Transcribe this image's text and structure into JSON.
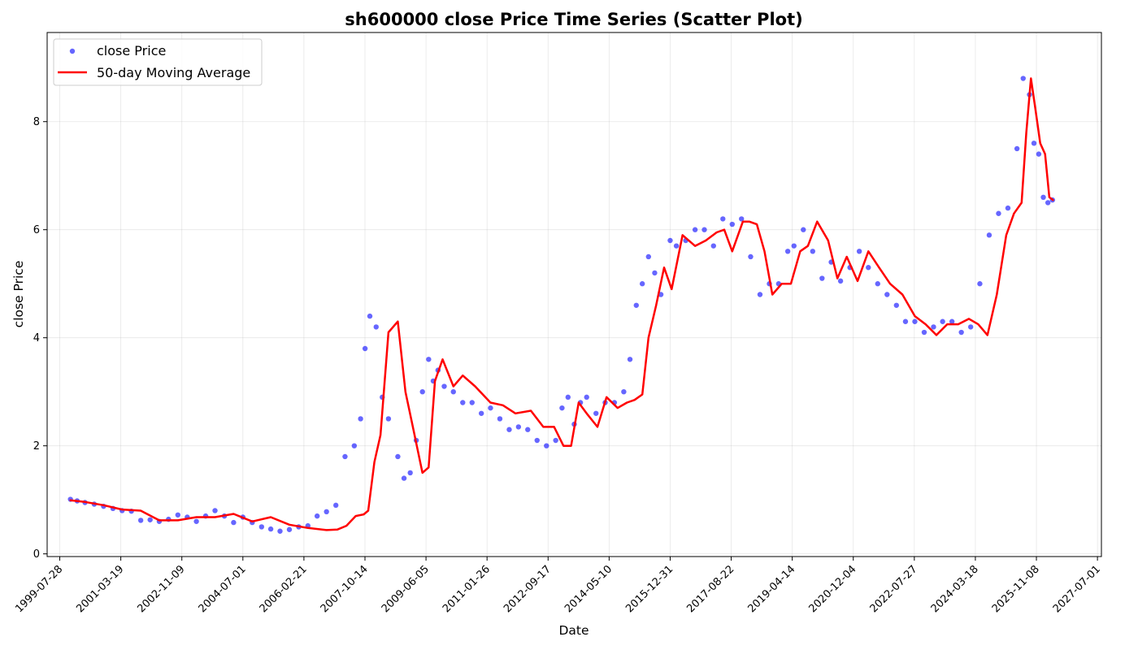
{
  "chart_data": {
    "type": "scatter",
    "title": "sh600000 close Price Time Series (Scatter Plot)",
    "xlabel": "Date",
    "ylabel": "close Price",
    "xlim": [
      "1999-03-26",
      "2027-08-09"
    ],
    "ylim": [
      -0.05,
      9.65
    ],
    "x_ticks": [
      "1999-07-28",
      "2001-03-19",
      "2002-11-09",
      "2004-07-01",
      "2006-02-21",
      "2007-10-14",
      "2009-06-05",
      "2011-01-26",
      "2012-09-17",
      "2014-05-10",
      "2015-12-31",
      "2017-08-22",
      "2019-04-14",
      "2020-12-04",
      "2022-07-27",
      "2024-03-18",
      "2025-11-08",
      "2027-07-01"
    ],
    "y_ticks": [
      0,
      2,
      4,
      6,
      8
    ],
    "grid": true,
    "legend": {
      "position": "top-left",
      "entries": [
        "close Price",
        "50-day Moving Average"
      ]
    },
    "colors": {
      "scatter": "#0000ff",
      "moving_average": "#ff0000"
    },
    "series": [
      {
        "name": "close Price",
        "kind": "scatter",
        "x": [
          "1999-11-10",
          "2000-01-15",
          "2000-04-01",
          "2000-07-01",
          "2000-10-01",
          "2001-01-01",
          "2001-04-01",
          "2001-07-01",
          "2001-10-01",
          "2002-01-01",
          "2002-04-01",
          "2002-07-01",
          "2002-10-01",
          "2003-01-01",
          "2003-04-01",
          "2003-07-01",
          "2003-10-01",
          "2004-01-01",
          "2004-04-01",
          "2004-07-01",
          "2004-10-01",
          "2005-01-01",
          "2005-04-01",
          "2005-07-01",
          "2005-10-01",
          "2006-01-01",
          "2006-04-01",
          "2006-07-01",
          "2006-10-01",
          "2007-01-01",
          "2007-04-01",
          "2007-07-01",
          "2007-09-01",
          "2007-10-15",
          "2007-12-01",
          "2008-02-01",
          "2008-04-01",
          "2008-06-01",
          "2008-09-01",
          "2008-11-01",
          "2009-01-01",
          "2009-03-01",
          "2009-05-01",
          "2009-07-01",
          "2009-08-15",
          "2009-10-01",
          "2009-12-01",
          "2010-03-01",
          "2010-06-01",
          "2010-09-01",
          "2010-12-01",
          "2011-03-01",
          "2011-06-01",
          "2011-09-01",
          "2011-12-01",
          "2012-03-01",
          "2012-06-01",
          "2012-09-01",
          "2012-12-01",
          "2013-02-01",
          "2013-04-01",
          "2013-06-01",
          "2013-08-01",
          "2013-10-01",
          "2014-01-01",
          "2014-04-01",
          "2014-07-01",
          "2014-10-01",
          "2014-12-01",
          "2015-02-01",
          "2015-04-01",
          "2015-06-01",
          "2015-08-01",
          "2015-10-01",
          "2015-12-31",
          "2016-03-01",
          "2016-06-01",
          "2016-09-01",
          "2016-12-01",
          "2017-03-01",
          "2017-06-01",
          "2017-09-01",
          "2017-12-01",
          "2018-03-01",
          "2018-06-01",
          "2018-09-01",
          "2018-12-01",
          "2019-03-01",
          "2019-05-01",
          "2019-08-01",
          "2019-11-01",
          "2020-02-01",
          "2020-05-01",
          "2020-08-01",
          "2020-11-01",
          "2021-02-01",
          "2021-05-01",
          "2021-08-01",
          "2021-11-01",
          "2022-02-01",
          "2022-05-01",
          "2022-08-01",
          "2022-11-01",
          "2023-02-01",
          "2023-05-01",
          "2023-08-01",
          "2023-11-01",
          "2024-02-01",
          "2024-05-01",
          "2024-08-01",
          "2024-11-01",
          "2025-02-01",
          "2025-05-01",
          "2025-07-01",
          "2025-09-01",
          "2025-10-15",
          "2025-12-01",
          "2026-01-15",
          "2026-03-01",
          "2026-04-15"
        ],
        "values": [
          1.01,
          0.98,
          0.95,
          0.92,
          0.88,
          0.84,
          0.8,
          0.79,
          0.62,
          0.63,
          0.6,
          0.64,
          0.72,
          0.68,
          0.6,
          0.7,
          0.8,
          0.7,
          0.58,
          0.68,
          0.58,
          0.5,
          0.46,
          0.42,
          0.45,
          0.5,
          0.52,
          0.7,
          0.78,
          0.9,
          1.8,
          2.0,
          2.5,
          3.8,
          4.4,
          4.2,
          2.9,
          2.5,
          1.8,
          1.4,
          1.5,
          2.1,
          3.0,
          3.6,
          3.2,
          3.4,
          3.1,
          3.0,
          2.8,
          2.8,
          2.6,
          2.7,
          2.5,
          2.3,
          2.35,
          2.3,
          2.1,
          2.0,
          2.1,
          2.7,
          2.9,
          2.4,
          2.8,
          2.9,
          2.6,
          2.8,
          2.8,
          3.0,
          3.6,
          4.6,
          5.0,
          5.5,
          5.2,
          4.8,
          5.8,
          5.7,
          5.8,
          6.0,
          6.0,
          5.7,
          6.2,
          6.1,
          6.2,
          5.5,
          4.8,
          5.0,
          5.0,
          5.6,
          5.7,
          6.0,
          5.6,
          5.1,
          5.4,
          5.05,
          5.3,
          5.6,
          5.3,
          5.0,
          4.8,
          4.6,
          4.3,
          4.3,
          4.1,
          4.2,
          4.3,
          4.3,
          4.1,
          4.2,
          5.0,
          5.9,
          6.3,
          6.4,
          7.5,
          8.8,
          8.5,
          7.6,
          7.4,
          6.6,
          6.5,
          6.55
        ]
      },
      {
        "name": "50-day Moving Average",
        "kind": "line",
        "x": [
          "1999-11-10",
          "2000-04-01",
          "2000-10-01",
          "2001-04-01",
          "2001-10-01",
          "2002-04-01",
          "2002-10-01",
          "2003-04-01",
          "2003-10-01",
          "2004-04-01",
          "2004-10-01",
          "2005-04-01",
          "2005-10-01",
          "2006-04-01",
          "2006-10-01",
          "2007-01-15",
          "2007-04-15",
          "2007-07-15",
          "2007-10-01",
          "2007-11-15",
          "2008-01-15",
          "2008-03-15",
          "2008-06-01",
          "2008-09-01",
          "2008-11-15",
          "2009-02-01",
          "2009-05-01",
          "2009-07-01",
          "2009-09-01",
          "2009-11-15",
          "2010-03-01",
          "2010-06-01",
          "2010-10-01",
          "2011-03-01",
          "2011-07-01",
          "2011-11-01",
          "2012-04-01",
          "2012-08-01",
          "2012-11-15",
          "2013-02-15",
          "2013-05-01",
          "2013-07-15",
          "2013-10-01",
          "2014-01-15",
          "2014-04-15",
          "2014-08-01",
          "2014-11-01",
          "2015-01-15",
          "2015-04-01",
          "2015-06-01",
          "2015-08-15",
          "2015-11-01",
          "2016-01-15",
          "2016-05-01",
          "2016-09-01",
          "2016-12-15",
          "2017-04-01",
          "2017-06-15",
          "2017-09-01",
          "2017-12-15",
          "2018-02-15",
          "2018-05-01",
          "2018-07-15",
          "2018-10-01",
          "2019-01-01",
          "2019-04-01",
          "2019-07-01",
          "2019-09-15",
          "2019-12-15",
          "2020-04-01",
          "2020-07-01",
          "2020-10-01",
          "2021-01-15",
          "2021-05-01",
          "2021-08-15",
          "2021-12-01",
          "2022-04-01",
          "2022-08-01",
          "2022-11-15",
          "2023-03-01",
          "2023-06-15",
          "2023-10-01",
          "2024-01-15",
          "2024-04-15",
          "2024-07-15",
          "2024-10-15",
          "2025-01-15",
          "2025-04-01",
          "2025-06-15",
          "2025-08-01",
          "2025-09-15",
          "2025-11-01",
          "2025-12-15",
          "2026-02-01",
          "2026-03-15",
          "2026-04-20"
        ],
        "values": [
          0.99,
          0.96,
          0.9,
          0.82,
          0.8,
          0.62,
          0.62,
          0.68,
          0.68,
          0.74,
          0.6,
          0.68,
          0.54,
          0.48,
          0.44,
          0.45,
          0.52,
          0.7,
          0.73,
          0.8,
          1.7,
          2.2,
          4.1,
          4.3,
          3.0,
          2.3,
          1.5,
          1.6,
          3.2,
          3.6,
          3.1,
          3.3,
          3.1,
          2.8,
          2.75,
          2.6,
          2.65,
          2.35,
          2.35,
          2.0,
          2.0,
          2.8,
          2.6,
          2.35,
          2.9,
          2.7,
          2.8,
          2.85,
          2.95,
          4.0,
          4.6,
          5.3,
          4.9,
          5.9,
          5.7,
          5.8,
          5.95,
          6.0,
          5.6,
          6.15,
          6.15,
          6.1,
          5.6,
          4.8,
          5.0,
          5.0,
          5.6,
          5.7,
          6.15,
          5.8,
          5.1,
          5.5,
          5.05,
          5.6,
          5.3,
          5.0,
          4.8,
          4.4,
          4.25,
          4.05,
          4.25,
          4.25,
          4.35,
          4.25,
          4.05,
          4.8,
          5.9,
          6.3,
          6.5,
          7.8,
          8.8,
          8.2,
          7.6,
          7.4,
          6.6,
          6.55
        ]
      }
    ]
  }
}
